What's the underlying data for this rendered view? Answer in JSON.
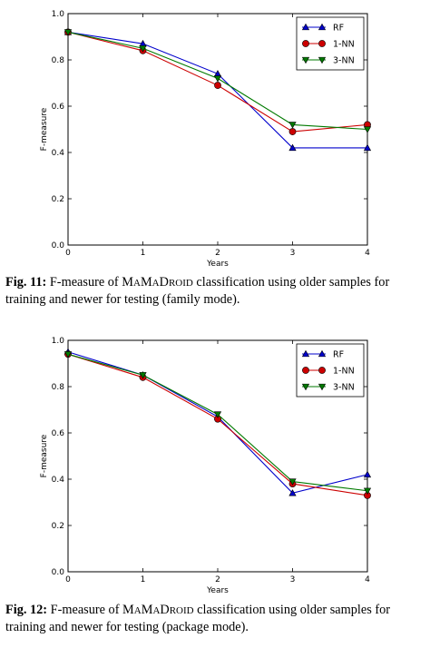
{
  "figures": [
    {
      "caption": {
        "label": "Fig. 11:",
        "pre": "F-measure of ",
        "name_parts": [
          [
            "M",
            "big"
          ],
          [
            "A",
            "small"
          ],
          [
            "M",
            "big"
          ],
          [
            "A",
            "small"
          ],
          [
            "D",
            "big"
          ],
          [
            "ROID",
            "small"
          ]
        ],
        "post": " classification using older samples for training and newer for testing (family mode)."
      },
      "chart_data": {
        "type": "line",
        "xlabel": "Years",
        "ylabel": "F-measure",
        "xlim": [
          0,
          4
        ],
        "ylim": [
          0.0,
          1.0
        ],
        "x_ticks": [
          "0",
          "1",
          "2",
          "3",
          "4"
        ],
        "y_ticks": [
          "0.0",
          "0.2",
          "0.4",
          "0.6",
          "0.8",
          "1.0"
        ],
        "x": [
          0,
          1,
          2,
          3,
          4
        ],
        "legend_position": "top-right",
        "series": [
          {
            "name": "RF",
            "color": "#0000cc",
            "marker": "triangle-up",
            "values": [
              0.92,
              0.87,
              0.74,
              0.42,
              0.42
            ]
          },
          {
            "name": "1-NN",
            "color": "#cc0000",
            "marker": "circle",
            "values": [
              0.92,
              0.84,
              0.69,
              0.49,
              0.52
            ]
          },
          {
            "name": "3-NN",
            "color": "#007a00",
            "marker": "triangle-down",
            "values": [
              0.92,
              0.85,
              0.72,
              0.52,
              0.5
            ]
          }
        ]
      }
    },
    {
      "caption": {
        "label": "Fig. 12:",
        "pre": "F-measure of ",
        "name_parts": [
          [
            "M",
            "big"
          ],
          [
            "A",
            "small"
          ],
          [
            "M",
            "big"
          ],
          [
            "A",
            "small"
          ],
          [
            "D",
            "big"
          ],
          [
            "ROID",
            "small"
          ]
        ],
        "post": " classification using older samples for training and newer for testing (package mode)."
      },
      "chart_data": {
        "type": "line",
        "xlabel": "Years",
        "ylabel": "F-measure",
        "xlim": [
          0,
          4
        ],
        "ylim": [
          0.0,
          1.0
        ],
        "x_ticks": [
          "0",
          "1",
          "2",
          "3",
          "4"
        ],
        "y_ticks": [
          "0.0",
          "0.2",
          "0.4",
          "0.6",
          "0.8",
          "1.0"
        ],
        "x": [
          0,
          1,
          2,
          3,
          4
        ],
        "legend_position": "top-right",
        "series": [
          {
            "name": "RF",
            "color": "#0000cc",
            "marker": "triangle-up",
            "values": [
              0.95,
              0.85,
              0.67,
              0.34,
              0.42
            ]
          },
          {
            "name": "1-NN",
            "color": "#cc0000",
            "marker": "circle",
            "values": [
              0.94,
              0.84,
              0.66,
              0.38,
              0.33
            ]
          },
          {
            "name": "3-NN",
            "color": "#007a00",
            "marker": "triangle-down",
            "values": [
              0.94,
              0.85,
              0.68,
              0.39,
              0.35
            ]
          }
        ]
      }
    }
  ]
}
